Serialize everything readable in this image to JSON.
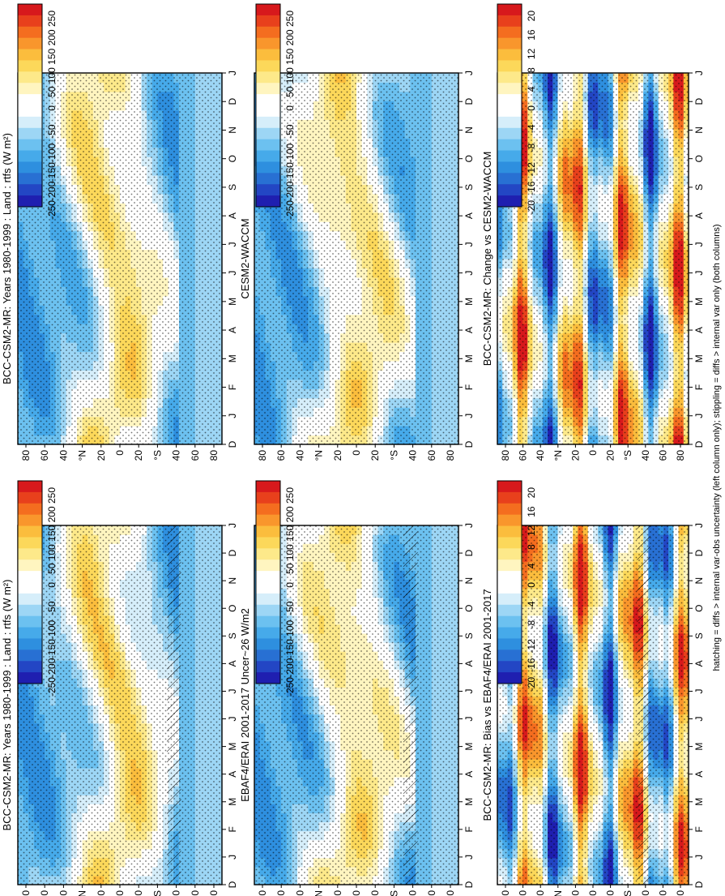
{
  "footnote": "hatching = diffs > internal var-obs uncertainty (left column only); stippling = diffs > internal var only (both columns)",
  "month_ticks": [
    "D",
    "J",
    "F",
    "M",
    "A",
    "M",
    "J",
    "J",
    "A",
    "S",
    "O",
    "N",
    "D",
    "J"
  ],
  "lat_ticks": [
    "80",
    "60",
    "40",
    "°N",
    "20",
    "0",
    "20",
    "°S",
    "40",
    "60",
    "80"
  ],
  "colorbar_abs": {
    "labels": [
      "250",
      "200",
      "150",
      "100",
      "50",
      "0",
      "-50",
      "-100",
      "-150",
      "-200",
      "-250"
    ]
  },
  "colorbar_diff": {
    "labels": [
      "20",
      "16",
      "12",
      "8",
      "4",
      "0",
      "-4",
      "-8",
      "-12",
      "-16",
      "-20"
    ]
  },
  "palette": [
    "#d7191c",
    "#e8401c",
    "#f46d1f",
    "#f9962c",
    "#fbbd3d",
    "#fcd85a",
    "#fde98a",
    "#fff5c0",
    "#ffffff",
    "#ffffff",
    "#d6eefa",
    "#9dd6f5",
    "#6cc1f0",
    "#46aaea",
    "#2e8fdf",
    "#2870d3",
    "#2346c4",
    "#1f1fb0"
  ],
  "chart_data": [
    {
      "type": "heatmap",
      "id": "p1",
      "title": "BCC-CSM2-MR: Years 1980-1999 : Land : rtfs (W m²)",
      "x": "month (D-J)",
      "y": "latitude 90N-90S",
      "colorbar": "abs"
    },
    {
      "type": "heatmap",
      "id": "p2",
      "title": "BCC-CSM2-MR: Years 1980-1999 : Land : rtfs (W m²)",
      "x": "month (D-J)",
      "y": "latitude 90N-90S",
      "colorbar": "abs"
    },
    {
      "type": "heatmap",
      "id": "p3",
      "title": "EBAF4/ERAI 2001-2017 Uncer~26 W/m2",
      "x": "month (D-J)",
      "y": "latitude 90N-90S",
      "colorbar": "abs"
    },
    {
      "type": "heatmap",
      "id": "p4",
      "title": "CESM2-WACCM",
      "x": "month (D-J)",
      "y": "latitude 90N-90S",
      "colorbar": "abs"
    },
    {
      "type": "heatmap",
      "id": "p5",
      "title": "BCC-CSM2-MR: Bias vs EBAF4/ERAI 2001-2017",
      "x": "month (D-J)",
      "y": "latitude 90N-90S",
      "colorbar": "diff"
    },
    {
      "type": "heatmap",
      "id": "p6",
      "title": "BCC-CSM2-MR: Change vs CESM2-WACCM",
      "x": "month (D-J)",
      "y": "latitude 90N-90S",
      "colorbar": "diff"
    }
  ]
}
